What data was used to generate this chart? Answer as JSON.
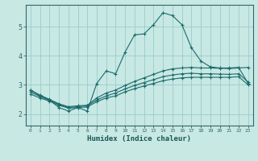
{
  "xlabel": "Humidex (Indice chaleur)",
  "bg_color": "#c8e8e4",
  "grid_color": "#99cccc",
  "line_color": "#1a6b6b",
  "xlim": [
    -0.5,
    23.5
  ],
  "ylim": [
    1.6,
    5.75
  ],
  "xticks": [
    0,
    1,
    2,
    3,
    4,
    5,
    6,
    7,
    8,
    9,
    10,
    11,
    12,
    13,
    14,
    15,
    16,
    17,
    18,
    19,
    20,
    21,
    22,
    23
  ],
  "yticks": [
    2,
    3,
    4,
    5
  ],
  "line1_x": [
    0,
    1,
    2,
    3,
    4,
    5,
    6,
    7,
    8,
    9,
    10,
    11,
    12,
    13,
    14,
    15,
    16,
    17,
    18,
    19,
    20,
    21,
    22,
    23
  ],
  "line1_y": [
    2.82,
    2.62,
    2.48,
    2.22,
    2.1,
    2.22,
    2.1,
    3.05,
    3.48,
    3.38,
    4.13,
    4.72,
    4.75,
    5.07,
    5.48,
    5.38,
    5.07,
    4.28,
    3.82,
    3.62,
    3.58,
    3.58,
    3.6,
    3.05
  ],
  "line2_x": [
    0,
    1,
    2,
    3,
    4,
    5,
    6,
    7,
    8,
    9,
    10,
    11,
    12,
    13,
    14,
    15,
    16,
    17,
    18,
    19,
    20,
    21,
    22,
    23
  ],
  "line2_y": [
    2.82,
    2.65,
    2.5,
    2.35,
    2.25,
    2.28,
    2.3,
    2.55,
    2.72,
    2.82,
    2.98,
    3.12,
    3.24,
    3.36,
    3.48,
    3.55,
    3.58,
    3.6,
    3.58,
    3.58,
    3.57,
    3.56,
    3.58,
    3.6
  ],
  "line3_x": [
    0,
    1,
    2,
    3,
    4,
    5,
    6,
    7,
    8,
    9,
    10,
    11,
    12,
    13,
    14,
    15,
    16,
    17,
    18,
    19,
    20,
    21,
    22,
    23
  ],
  "line3_y": [
    2.75,
    2.6,
    2.47,
    2.33,
    2.22,
    2.25,
    2.28,
    2.48,
    2.62,
    2.72,
    2.86,
    2.98,
    3.08,
    3.18,
    3.28,
    3.34,
    3.38,
    3.4,
    3.38,
    3.38,
    3.37,
    3.36,
    3.38,
    3.1
  ],
  "line4_x": [
    0,
    1,
    2,
    3,
    4,
    5,
    6,
    7,
    8,
    9,
    10,
    11,
    12,
    13,
    14,
    15,
    16,
    17,
    18,
    19,
    20,
    21,
    22,
    23
  ],
  "line4_y": [
    2.68,
    2.55,
    2.44,
    2.3,
    2.2,
    2.22,
    2.24,
    2.42,
    2.55,
    2.62,
    2.76,
    2.87,
    2.96,
    3.05,
    3.14,
    3.2,
    3.24,
    3.26,
    3.26,
    3.26,
    3.26,
    3.26,
    3.28,
    3.0
  ]
}
